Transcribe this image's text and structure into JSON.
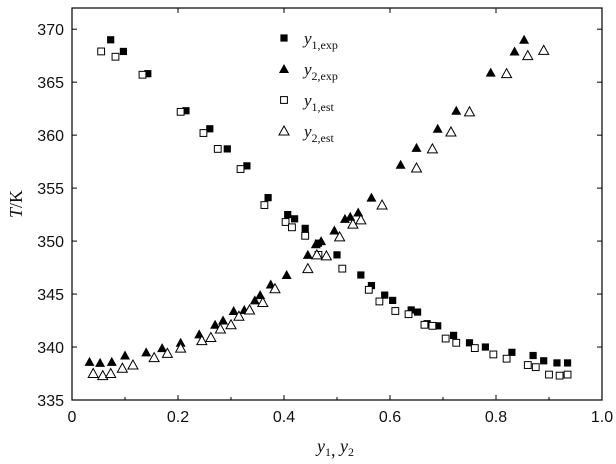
{
  "chart_data": {
    "type": "scatter",
    "title": "",
    "xlabel": "y1, y2",
    "ylabel": "T/K",
    "xlim": [
      0,
      1.0
    ],
    "ylim": [
      335,
      372
    ],
    "xticks": [
      0,
      0.2,
      0.4,
      0.6,
      0.8,
      1.0
    ],
    "xtick_labels": [
      "0",
      "0.2",
      "0.4",
      "0.6",
      "0.8",
      "1.0"
    ],
    "yticks": [
      335,
      340,
      345,
      350,
      355,
      360,
      365,
      370
    ],
    "ytick_labels": [
      "335",
      "340",
      "345",
      "350",
      "355",
      "360",
      "365",
      "370"
    ],
    "grid": false,
    "legend_position": "top-center",
    "series": [
      {
        "name": "y1,exp",
        "legend_main": "y",
        "legend_sub": "1,exp",
        "marker": "filled-square",
        "points": [
          [
            0.073,
            369.0
          ],
          [
            0.097,
            367.9
          ],
          [
            0.143,
            365.8
          ],
          [
            0.215,
            362.3
          ],
          [
            0.26,
            360.6
          ],
          [
            0.293,
            358.7
          ],
          [
            0.33,
            357.1
          ],
          [
            0.37,
            354.1
          ],
          [
            0.407,
            352.5
          ],
          [
            0.42,
            352.1
          ],
          [
            0.44,
            351.2
          ],
          [
            0.465,
            349.8
          ],
          [
            0.5,
            348.7
          ],
          [
            0.545,
            346.8
          ],
          [
            0.565,
            345.8
          ],
          [
            0.59,
            344.9
          ],
          [
            0.605,
            344.4
          ],
          [
            0.64,
            343.5
          ],
          [
            0.652,
            343.3
          ],
          [
            0.67,
            342.2
          ],
          [
            0.69,
            342.0
          ],
          [
            0.72,
            341.1
          ],
          [
            0.75,
            340.4
          ],
          [
            0.78,
            340.0
          ],
          [
            0.83,
            339.5
          ],
          [
            0.87,
            339.2
          ],
          [
            0.89,
            338.7
          ],
          [
            0.915,
            338.5
          ],
          [
            0.935,
            338.5
          ]
        ]
      },
      {
        "name": "y2,exp",
        "legend_main": "y",
        "legend_sub": "2,exp",
        "marker": "filled-triangle",
        "points": [
          [
            0.033,
            338.6
          ],
          [
            0.053,
            338.5
          ],
          [
            0.075,
            338.6
          ],
          [
            0.1,
            339.2
          ],
          [
            0.14,
            339.5
          ],
          [
            0.17,
            339.9
          ],
          [
            0.205,
            340.4
          ],
          [
            0.24,
            341.2
          ],
          [
            0.27,
            342.1
          ],
          [
            0.285,
            342.5
          ],
          [
            0.305,
            343.4
          ],
          [
            0.325,
            343.5
          ],
          [
            0.345,
            344.4
          ],
          [
            0.355,
            344.9
          ],
          [
            0.375,
            345.9
          ],
          [
            0.405,
            346.8
          ],
          [
            0.445,
            348.7
          ],
          [
            0.46,
            349.7
          ],
          [
            0.47,
            350.0
          ],
          [
            0.495,
            351.0
          ],
          [
            0.515,
            352.1
          ],
          [
            0.525,
            352.3
          ],
          [
            0.54,
            352.7
          ],
          [
            0.565,
            354.1
          ],
          [
            0.62,
            357.2
          ],
          [
            0.65,
            358.8
          ],
          [
            0.69,
            360.6
          ],
          [
            0.725,
            362.3
          ],
          [
            0.79,
            365.9
          ],
          [
            0.835,
            367.9
          ],
          [
            0.853,
            369.0
          ]
        ]
      },
      {
        "name": "y1,est",
        "legend_main": "y",
        "legend_sub": "1,est",
        "marker": "open-square",
        "points": [
          [
            0.055,
            367.9
          ],
          [
            0.082,
            367.4
          ],
          [
            0.133,
            365.7
          ],
          [
            0.205,
            362.2
          ],
          [
            0.248,
            360.2
          ],
          [
            0.275,
            358.7
          ],
          [
            0.318,
            356.8
          ],
          [
            0.363,
            353.4
          ],
          [
            0.403,
            351.8
          ],
          [
            0.415,
            351.3
          ],
          [
            0.44,
            350.5
          ],
          [
            0.465,
            348.7
          ],
          [
            0.51,
            347.4
          ],
          [
            0.56,
            345.4
          ],
          [
            0.58,
            344.3
          ],
          [
            0.61,
            343.4
          ],
          [
            0.635,
            343.1
          ],
          [
            0.665,
            342.1
          ],
          [
            0.68,
            342.0
          ],
          [
            0.705,
            340.8
          ],
          [
            0.725,
            340.4
          ],
          [
            0.76,
            339.9
          ],
          [
            0.795,
            339.3
          ],
          [
            0.82,
            338.9
          ],
          [
            0.86,
            338.3
          ],
          [
            0.875,
            338.1
          ],
          [
            0.9,
            337.4
          ],
          [
            0.92,
            337.3
          ],
          [
            0.935,
            337.4
          ]
        ]
      },
      {
        "name": "y2,est",
        "legend_main": "y",
        "legend_sub": "2,est",
        "marker": "open-triangle",
        "points": [
          [
            0.04,
            337.5
          ],
          [
            0.058,
            337.3
          ],
          [
            0.073,
            337.5
          ],
          [
            0.095,
            338.0
          ],
          [
            0.115,
            338.3
          ],
          [
            0.155,
            339.0
          ],
          [
            0.18,
            339.4
          ],
          [
            0.205,
            339.9
          ],
          [
            0.245,
            340.6
          ],
          [
            0.262,
            340.9
          ],
          [
            0.28,
            341.7
          ],
          [
            0.3,
            342.1
          ],
          [
            0.315,
            342.9
          ],
          [
            0.335,
            343.5
          ],
          [
            0.36,
            344.2
          ],
          [
            0.383,
            345.5
          ],
          [
            0.445,
            347.4
          ],
          [
            0.462,
            348.7
          ],
          [
            0.48,
            348.6
          ],
          [
            0.505,
            350.4
          ],
          [
            0.53,
            351.6
          ],
          [
            0.545,
            352.0
          ],
          [
            0.585,
            353.4
          ],
          [
            0.65,
            356.9
          ],
          [
            0.68,
            358.7
          ],
          [
            0.715,
            360.3
          ],
          [
            0.75,
            362.2
          ],
          [
            0.82,
            365.8
          ],
          [
            0.86,
            367.5
          ],
          [
            0.89,
            368.0
          ]
        ]
      }
    ]
  }
}
